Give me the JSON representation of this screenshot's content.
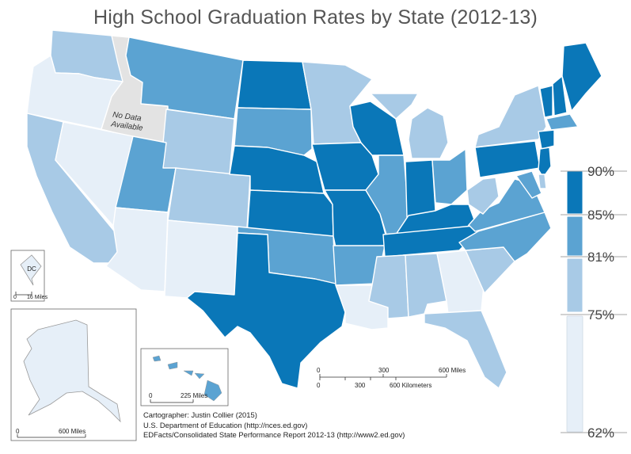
{
  "title": "High School Graduation Rates by State (2012-13)",
  "colors": {
    "class_90": "#0a77b8",
    "class_85": "#5ba3d2",
    "class_81": "#a8cae6",
    "class_75": "#e6eff8",
    "no_data": "#e3e3e3",
    "border": "#ffffff"
  },
  "legend": {
    "labels": [
      "90%",
      "85%",
      "81%",
      "75%",
      "62%"
    ]
  },
  "no_data_label": [
    "No Data",
    "Available"
  ],
  "inset_dc": {
    "label": "DC",
    "scale_zero": "0",
    "scale_label": "16 Miles"
  },
  "inset_alaska": {
    "scale_zero": "0",
    "scale_label": "600 Miles"
  },
  "inset_hawaii": {
    "scale_zero": "0",
    "scale_label": "225 Miles"
  },
  "scale_bar": {
    "miles": [
      "0",
      "300",
      "600 Miles"
    ],
    "km": [
      "0",
      "300",
      "600 Kilometers"
    ]
  },
  "credits": [
    "Cartographer: Justin Collier (2015)",
    "U.S. Department of Education (http://nces.ed.gov)",
    "EDFacts/Consolidated State Performance Report 2012-13 (http://www2.ed.gov)"
  ],
  "states": [
    {
      "id": "WA",
      "cls": "class_81"
    },
    {
      "id": "OR",
      "cls": "class_75"
    },
    {
      "id": "CA",
      "cls": "class_81"
    },
    {
      "id": "ID",
      "cls": "no_data"
    },
    {
      "id": "NV",
      "cls": "class_75"
    },
    {
      "id": "MT",
      "cls": "class_85"
    },
    {
      "id": "WY",
      "cls": "class_81"
    },
    {
      "id": "UT",
      "cls": "class_85"
    },
    {
      "id": "AZ",
      "cls": "class_75"
    },
    {
      "id": "CO",
      "cls": "class_81"
    },
    {
      "id": "NM",
      "cls": "class_75"
    },
    {
      "id": "ND",
      "cls": "class_90"
    },
    {
      "id": "SD",
      "cls": "class_85"
    },
    {
      "id": "NE",
      "cls": "class_90"
    },
    {
      "id": "KS",
      "cls": "class_90"
    },
    {
      "id": "OK",
      "cls": "class_85"
    },
    {
      "id": "TX",
      "cls": "class_90"
    },
    {
      "id": "MN",
      "cls": "class_81"
    },
    {
      "id": "IA",
      "cls": "class_90"
    },
    {
      "id": "MO",
      "cls": "class_90"
    },
    {
      "id": "AR",
      "cls": "class_85"
    },
    {
      "id": "LA",
      "cls": "class_75"
    },
    {
      "id": "WI",
      "cls": "class_90"
    },
    {
      "id": "IL",
      "cls": "class_85"
    },
    {
      "id": "MI",
      "cls": "class_81"
    },
    {
      "id": "IN",
      "cls": "class_90"
    },
    {
      "id": "OH",
      "cls": "class_85"
    },
    {
      "id": "KY",
      "cls": "class_90"
    },
    {
      "id": "TN",
      "cls": "class_90"
    },
    {
      "id": "MS",
      "cls": "class_81"
    },
    {
      "id": "AL",
      "cls": "class_81"
    },
    {
      "id": "GA",
      "cls": "class_75"
    },
    {
      "id": "FL",
      "cls": "class_81"
    },
    {
      "id": "SC",
      "cls": "class_81"
    },
    {
      "id": "NC",
      "cls": "class_85"
    },
    {
      "id": "VA",
      "cls": "class_85"
    },
    {
      "id": "WV",
      "cls": "class_81"
    },
    {
      "id": "PA",
      "cls": "class_90"
    },
    {
      "id": "NY",
      "cls": "class_81"
    },
    {
      "id": "VT",
      "cls": "class_90"
    },
    {
      "id": "NH",
      "cls": "class_90"
    },
    {
      "id": "ME",
      "cls": "class_90"
    },
    {
      "id": "MA",
      "cls": "class_85"
    },
    {
      "id": "CT",
      "cls": "class_90"
    },
    {
      "id": "NJ",
      "cls": "class_90"
    },
    {
      "id": "MD",
      "cls": "class_85"
    },
    {
      "id": "DE",
      "cls": "class_81"
    },
    {
      "id": "AK",
      "cls": "class_75"
    },
    {
      "id": "HI",
      "cls": "class_85"
    },
    {
      "id": "DC",
      "cls": "class_75"
    }
  ]
}
